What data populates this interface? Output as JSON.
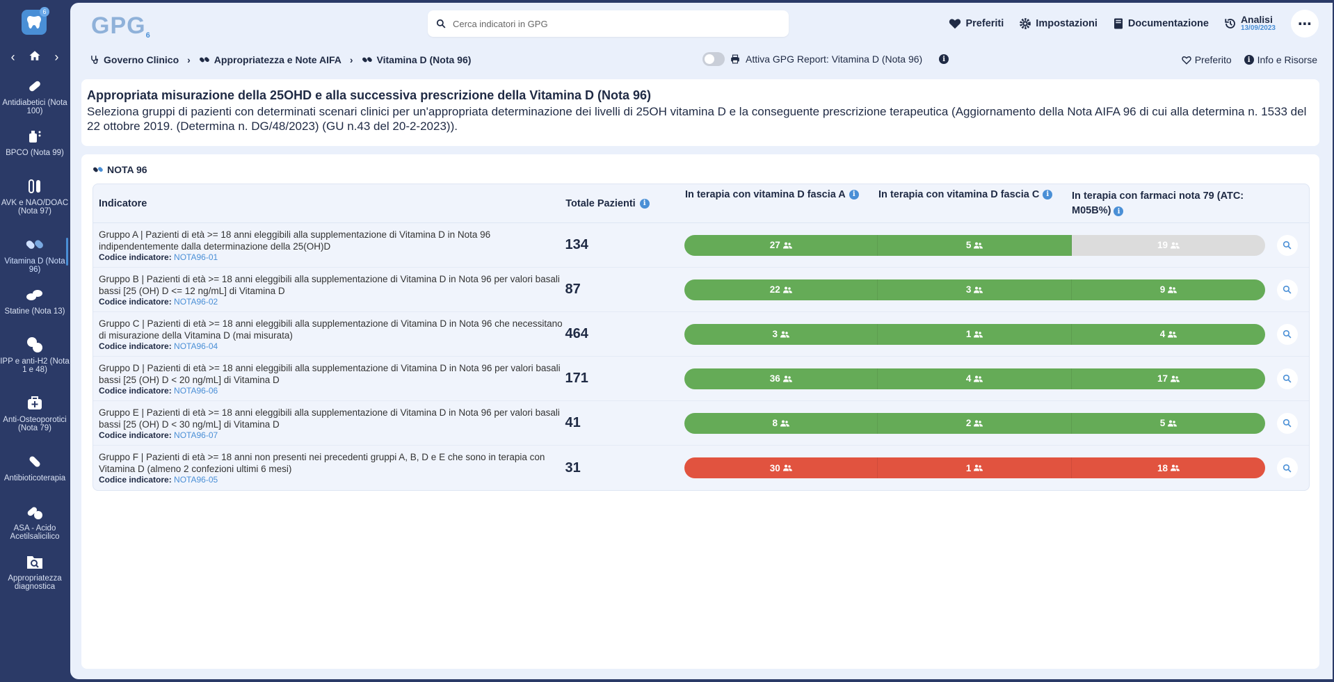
{
  "sidebar": {
    "logo_badge": "6",
    "items": [
      {
        "label": "Antidiabetici (Nota 100)",
        "icon": "pill-icon"
      },
      {
        "label": "BPCO (Nota 99)",
        "icon": "inhaler-icon"
      },
      {
        "label": "AVK e NAO/DOAC (Nota 97)",
        "icon": "vials-icon"
      },
      {
        "label": "Vitamina D (Nota 96)",
        "icon": "capsules-icon"
      },
      {
        "label": "Statine (Nota 13)",
        "icon": "pills-icon"
      },
      {
        "label": "IPP e anti-H2 (Nota 1 e 48)",
        "icon": "tablets-icon"
      },
      {
        "label": "Anti-Osteoporotici (Nota 79)",
        "icon": "medkit-icon"
      },
      {
        "label": "Antibioticoterapia",
        "icon": "capsule-icon"
      },
      {
        "label": "ASA - Acido Acetilsalicilico",
        "icon": "pills-pair-icon"
      },
      {
        "label": "Appropriatezza diagnostica",
        "icon": "folder-search-icon"
      }
    ]
  },
  "header": {
    "logo_text": "GPG",
    "logo_suffix": "6",
    "search_placeholder": "Cerca indicatori in GPG",
    "preferiti": "Preferiti",
    "impostazioni": "Impostazioni",
    "documentazione": "Documentazione",
    "analisi": "Analisi",
    "analisi_date": "13/09/2023"
  },
  "breadcrumb": {
    "items": [
      "Governo Clinico",
      "Appropriatezza e Note AIFA",
      "Vitamina D (Nota 96)"
    ],
    "report_label": "Attiva GPG Report: Vitamina D (Nota 96)",
    "preferito": "Preferito",
    "info": "Info e Risorse"
  },
  "description": {
    "title": "Appropriata misurazione della 25OHD e alla successiva prescrizione della Vitamina D (Nota 96)",
    "text": "Seleziona gruppi di pazienti con determinati scenari clinici per un'appropriata determinazione dei livelli di 25OH vitamina D e la conseguente prescrizione terapeutica (Aggiornamento della Nota AIFA 96 di cui alla determina n. 1533 del 22 ottobre 2019. (Determina n. DG/48/2023) (GU n.43 del 20-2-2023))."
  },
  "table": {
    "card_title": "NOTA 96",
    "headers": {
      "indicatore": "Indicatore",
      "totale": "Totale Pazienti",
      "fascia_a": "In terapia con vitamina D fascia A",
      "fascia_c": "In terapia con vitamina D fascia C",
      "nota79": "In terapia con farmaci nota 79 (ATC: M05B%)"
    },
    "code_label": "Codice indicatore:",
    "rows": [
      {
        "text": "Gruppo A | Pazienti di età >= 18 anni eleggibili alla supplementazione di Vitamina D in Nota 96 indipendentemente dalla determinazione della 25(OH)D",
        "code": "NOTA96-01",
        "total": "134",
        "a": "27",
        "c": "5",
        "n79": "19",
        "colors": [
          "green",
          "green",
          "gray"
        ]
      },
      {
        "text": "Gruppo B | Pazienti di età >= 18 anni eleggibili alla supplementazione di Vitamina D in Nota 96 per valori basali bassi [25 (OH) D <= 12 ng/mL] di Vitamina D",
        "code": "NOTA96-02",
        "total": "87",
        "a": "22",
        "c": "3",
        "n79": "9",
        "colors": [
          "green",
          "green",
          "green"
        ]
      },
      {
        "text": "Gruppo C | Pazienti di età >= 18 anni eleggibili alla supplementazione di Vitamina D in Nota 96 che necessitano di misurazione della Vitamina D (mai misurata)",
        "code": "NOTA96-04",
        "total": "464",
        "a": "3",
        "c": "1",
        "n79": "4",
        "colors": [
          "green",
          "green",
          "green"
        ]
      },
      {
        "text": "Gruppo D | Pazienti di età >= 18 anni eleggibili alla supplementazione di Vitamina D in Nota 96 per valori basali bassi [25 (OH) D < 20 ng/mL] di Vitamina D",
        "code": "NOTA96-06",
        "total": "171",
        "a": "36",
        "c": "4",
        "n79": "17",
        "colors": [
          "green",
          "green",
          "green"
        ]
      },
      {
        "text": "Gruppo E | Pazienti di età >= 18 anni eleggibili alla supplementazione di Vitamina D in Nota 96 per valori basali bassi [25 (OH) D < 30 ng/mL] di Vitamina D",
        "code": "NOTA96-07",
        "total": "41",
        "a": "8",
        "c": "2",
        "n79": "5",
        "colors": [
          "green",
          "green",
          "green"
        ]
      },
      {
        "text": "Gruppo F | Pazienti di età >= 18 anni non presenti nei precedenti gruppi A, B, D e E che sono in terapia con Vitamina D (almeno 2 confezioni ultimi 6 mesi)",
        "code": "NOTA96-05",
        "total": "31",
        "a": "30",
        "c": "1",
        "n79": "18",
        "colors": [
          "red",
          "red",
          "red"
        ]
      }
    ]
  },
  "colors": {
    "green": "#65ab57",
    "red": "#e1533f",
    "gray": "#dcdcdc",
    "accent": "#4a8fd6",
    "sidebar": "#2b3a67"
  }
}
